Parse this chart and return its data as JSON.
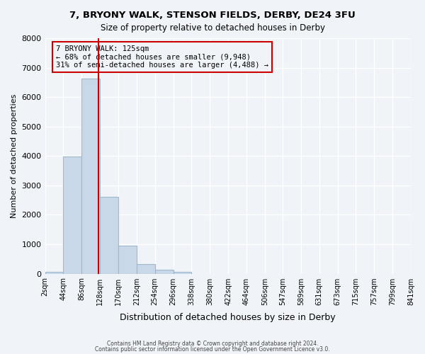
{
  "title": "7, BRYONY WALK, STENSON FIELDS, DERBY, DE24 3FU",
  "subtitle": "Size of property relative to detached houses in Derby",
  "xlabel": "Distribution of detached houses by size in Derby",
  "ylabel": "Number of detached properties",
  "bar_color": "#c8d8e8",
  "bar_edge_color": "#a0b8cc",
  "bin_edges": [
    2,
    44,
    86,
    128,
    170,
    212,
    254,
    296,
    338,
    380,
    422,
    464,
    506,
    547,
    589,
    631,
    673,
    715,
    757,
    799,
    841
  ],
  "bar_heights": [
    60,
    3980,
    6620,
    2600,
    960,
    320,
    130,
    65,
    0,
    0,
    0,
    0,
    0,
    0,
    0,
    0,
    0,
    0,
    0,
    0
  ],
  "tick_labels": [
    "2sqm",
    "44sqm",
    "86sqm",
    "128sqm",
    "170sqm",
    "212sqm",
    "254sqm",
    "296sqm",
    "338sqm",
    "380sqm",
    "422sqm",
    "464sqm",
    "506sqm",
    "547sqm",
    "589sqm",
    "631sqm",
    "673sqm",
    "715sqm",
    "757sqm",
    "799sqm",
    "841sqm"
  ],
  "vline_x": 125,
  "vline_color": "#cc0000",
  "annotation_box_text": "7 BRYONY WALK: 125sqm\n← 68% of detached houses are smaller (9,948)\n31% of semi-detached houses are larger (4,488) →",
  "annotation_box_color": "#cc0000",
  "ylim": [
    0,
    8000
  ],
  "yticks": [
    0,
    1000,
    2000,
    3000,
    4000,
    5000,
    6000,
    7000,
    8000
  ],
  "footer_line1": "Contains HM Land Registry data © Crown copyright and database right 2024.",
  "footer_line2": "Contains public sector information licensed under the Open Government Licence v3.0.",
  "background_color": "#f0f4f8",
  "grid_color": "#ffffff"
}
